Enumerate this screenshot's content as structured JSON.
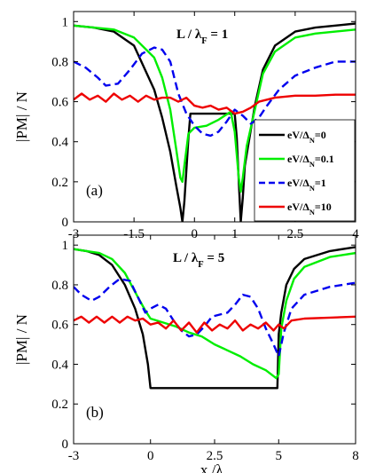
{
  "chart_data": [
    {
      "type": "line",
      "panel_label": "(a)",
      "annotation": "L / λF = 1",
      "xlabel": "",
      "ylabel": "|PM| / N",
      "xlim": [
        -3,
        4
      ],
      "ylim": [
        0,
        1.05
      ],
      "x_ticks": [
        "-3",
        "-1.5",
        "0",
        "1",
        "2.5",
        "4"
      ],
      "x_tick_values": [
        -3,
        -1.5,
        0,
        1,
        2.5,
        4
      ],
      "y_ticks": [
        "0",
        "0.2",
        "0.4",
        "0.6",
        "0.8",
        "1"
      ],
      "y_tick_values": [
        0,
        0.2,
        0.4,
        0.6,
        0.8,
        1
      ],
      "legend_position": "bottom-right",
      "legend": [
        "eV/ΔN=0",
        "eV/ΔN=0.1",
        "eV/ΔN=1",
        "eV/ΔN=10"
      ],
      "series": [
        {
          "name": "eV/ΔN=0",
          "color": "#000000",
          "dash": "solid",
          "x": [
            -3,
            -2.5,
            -2,
            -1.5,
            -1,
            -0.8,
            -0.6,
            -0.45,
            -0.35,
            -0.3,
            -0.25,
            -0.15,
            -0.1,
            0,
            0.5,
            0.9,
            1.0,
            1.05,
            1.1,
            1.15,
            1.2,
            1.25,
            1.35,
            1.5,
            1.7,
            2.0,
            2.5,
            3.0,
            3.5,
            4.0
          ],
          "y": [
            0.98,
            0.97,
            0.95,
            0.88,
            0.66,
            0.52,
            0.35,
            0.18,
            0.07,
            0.0,
            0.1,
            0.42,
            0.54,
            0.54,
            0.54,
            0.54,
            0.54,
            0.42,
            0.2,
            0.0,
            0.12,
            0.28,
            0.4,
            0.58,
            0.76,
            0.88,
            0.95,
            0.97,
            0.98,
            0.99
          ]
        },
        {
          "name": "eV/ΔN=0.1",
          "color": "#00ee00",
          "dash": "solid",
          "x": [
            -3,
            -2.5,
            -2,
            -1.5,
            -1,
            -0.8,
            -0.6,
            -0.45,
            -0.35,
            -0.3,
            -0.25,
            -0.15,
            0,
            0.3,
            0.6,
            0.9,
            1.0,
            1.1,
            1.15,
            1.2,
            1.3,
            1.5,
            1.7,
            2.0,
            2.5,
            3.0,
            3.5,
            4.0
          ],
          "y": [
            0.98,
            0.97,
            0.96,
            0.92,
            0.82,
            0.72,
            0.56,
            0.36,
            0.22,
            0.2,
            0.28,
            0.44,
            0.47,
            0.48,
            0.51,
            0.55,
            0.45,
            0.22,
            0.15,
            0.22,
            0.38,
            0.56,
            0.74,
            0.85,
            0.92,
            0.94,
            0.95,
            0.96
          ]
        },
        {
          "name": "eV/ΔN=1",
          "color": "#0000ee",
          "dash": "dashed",
          "x": [
            -3,
            -2.7,
            -2.4,
            -2.2,
            -1.9,
            -1.6,
            -1.3,
            -1.0,
            -0.8,
            -0.6,
            -0.4,
            -0.2,
            0,
            0.2,
            0.4,
            0.6,
            0.8,
            1.0,
            1.2,
            1.4,
            1.6,
            1.8,
            2.1,
            2.5,
            3.0,
            3.5,
            4.0
          ],
          "y": [
            0.8,
            0.77,
            0.72,
            0.68,
            0.69,
            0.76,
            0.84,
            0.87,
            0.86,
            0.8,
            0.64,
            0.54,
            0.48,
            0.44,
            0.43,
            0.45,
            0.5,
            0.56,
            0.53,
            0.49,
            0.52,
            0.58,
            0.66,
            0.73,
            0.77,
            0.8,
            0.8
          ]
        },
        {
          "name": "eV/ΔN=10",
          "color": "#ee0000",
          "dash": "solid",
          "x": [
            -3,
            -2.8,
            -2.6,
            -2.4,
            -2.2,
            -2.0,
            -1.8,
            -1.6,
            -1.4,
            -1.2,
            -1.0,
            -0.8,
            -0.6,
            -0.4,
            -0.2,
            0,
            0.2,
            0.4,
            0.6,
            0.8,
            1.0,
            1.2,
            1.4,
            1.6,
            2.0,
            2.5,
            3.0,
            3.5,
            4.0
          ],
          "y": [
            0.61,
            0.64,
            0.61,
            0.63,
            0.6,
            0.64,
            0.61,
            0.63,
            0.6,
            0.63,
            0.61,
            0.62,
            0.62,
            0.6,
            0.62,
            0.58,
            0.57,
            0.58,
            0.56,
            0.57,
            0.54,
            0.55,
            0.57,
            0.6,
            0.62,
            0.63,
            0.63,
            0.635,
            0.635
          ]
        }
      ]
    },
    {
      "type": "line",
      "panel_label": "(b)",
      "annotation": "L / λF = 5",
      "xlabel": "x /λF",
      "ylabel": "|PM| / N",
      "xlim": [
        -3,
        8
      ],
      "ylim": [
        0,
        1.05
      ],
      "x_ticks": [
        "-3",
        "0",
        "2.5",
        "5",
        "8"
      ],
      "x_tick_values": [
        -3,
        0,
        2.5,
        5,
        8
      ],
      "y_ticks": [
        "0",
        "0.2",
        "0.4",
        "0.6",
        "0.8",
        "1"
      ],
      "y_tick_values": [
        0,
        0.2,
        0.4,
        0.6,
        0.8,
        1
      ],
      "series": [
        {
          "name": "eV/ΔN=0",
          "color": "#000000",
          "dash": "solid",
          "x": [
            -3,
            -2.5,
            -2,
            -1.5,
            -1,
            -0.6,
            -0.3,
            -0.1,
            0,
            2.5,
            4.95,
            5.0,
            5.1,
            5.3,
            5.6,
            6,
            7,
            8
          ],
          "y": [
            0.98,
            0.97,
            0.95,
            0.9,
            0.8,
            0.68,
            0.55,
            0.4,
            0.28,
            0.28,
            0.28,
            0.55,
            0.66,
            0.8,
            0.88,
            0.93,
            0.97,
            0.99
          ]
        },
        {
          "name": "eV/ΔN=0.1",
          "color": "#00ee00",
          "dash": "solid",
          "x": [
            -3,
            -2.5,
            -2,
            -1.5,
            -1,
            -0.5,
            -0.2,
            0,
            0.5,
            1,
            1.5,
            2,
            2.5,
            3,
            3.5,
            4,
            4.5,
            4.9,
            5.0,
            5.1,
            5.3,
            5.6,
            6,
            7,
            8
          ],
          "y": [
            0.98,
            0.97,
            0.96,
            0.93,
            0.86,
            0.74,
            0.67,
            0.63,
            0.61,
            0.59,
            0.56,
            0.54,
            0.5,
            0.47,
            0.44,
            0.4,
            0.37,
            0.33,
            0.35,
            0.58,
            0.72,
            0.83,
            0.89,
            0.94,
            0.96
          ]
        },
        {
          "name": "eV/ΔN=1",
          "color": "#0000ee",
          "dash": "dashed",
          "x": [
            -3,
            -2.7,
            -2.3,
            -2.0,
            -1.6,
            -1.2,
            -0.8,
            -0.5,
            -0.2,
            0,
            0.3,
            0.6,
            0.9,
            1.2,
            1.5,
            1.8,
            2.1,
            2.4,
            2.7,
            3.0,
            3.3,
            3.6,
            3.9,
            4.2,
            4.5,
            4.8,
            5.0,
            5.2,
            5.5,
            6,
            7,
            8
          ],
          "y": [
            0.79,
            0.75,
            0.72,
            0.74,
            0.79,
            0.83,
            0.82,
            0.74,
            0.66,
            0.68,
            0.7,
            0.68,
            0.62,
            0.57,
            0.54,
            0.55,
            0.59,
            0.64,
            0.65,
            0.66,
            0.7,
            0.75,
            0.74,
            0.68,
            0.58,
            0.5,
            0.44,
            0.56,
            0.68,
            0.75,
            0.79,
            0.81
          ]
        },
        {
          "name": "eV/ΔN=10",
          "color": "#ee0000",
          "dash": "solid",
          "x": [
            -3,
            -2.7,
            -2.4,
            -2.1,
            -1.8,
            -1.5,
            -1.2,
            -0.9,
            -0.6,
            -0.3,
            0,
            0.3,
            0.6,
            0.9,
            1.2,
            1.5,
            1.8,
            2.1,
            2.4,
            2.7,
            3.0,
            3.3,
            3.6,
            3.9,
            4.2,
            4.5,
            4.8,
            5.0,
            5.2,
            5.5,
            6,
            7,
            8
          ],
          "y": [
            0.62,
            0.64,
            0.61,
            0.64,
            0.61,
            0.64,
            0.61,
            0.64,
            0.62,
            0.63,
            0.6,
            0.61,
            0.58,
            0.62,
            0.57,
            0.61,
            0.56,
            0.61,
            0.57,
            0.6,
            0.58,
            0.62,
            0.57,
            0.6,
            0.58,
            0.61,
            0.57,
            0.6,
            0.58,
            0.62,
            0.63,
            0.635,
            0.64
          ]
        }
      ]
    }
  ]
}
